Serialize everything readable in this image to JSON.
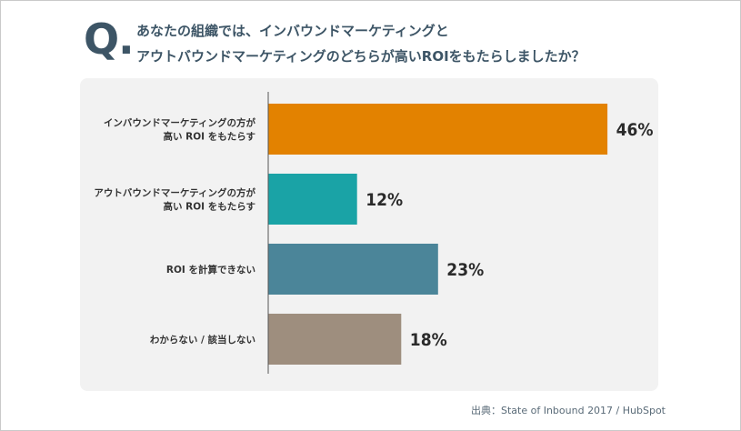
{
  "question": {
    "mark": "Q.",
    "line1": "あなたの組織では、インバウンドマーケティングと",
    "line2": "アウトバウンドマーケティングのどちらが高いROIをもたらしましたか？"
  },
  "source": "出典：State of Inbound 2017 / HubSpot",
  "chart_data": {
    "type": "bar",
    "orientation": "horizontal",
    "categories": [
      [
        "インバウンドマーケティングの方が",
        "高い ROI をもたらす"
      ],
      [
        "アウトバウンドマーケティングの方が",
        "高い ROI をもたらす"
      ],
      [
        "ROI を計算できない"
      ],
      [
        "わからない / 該当しない"
      ]
    ],
    "values": [
      46,
      12,
      23,
      18
    ],
    "value_labels": [
      "46%",
      "12%",
      "23%",
      "18%"
    ],
    "colors": [
      "#e38200",
      "#1aa3a6",
      "#4b8599",
      "#9e8e7e"
    ],
    "xlim": [
      0,
      50
    ],
    "grid": false,
    "legend": "none"
  }
}
